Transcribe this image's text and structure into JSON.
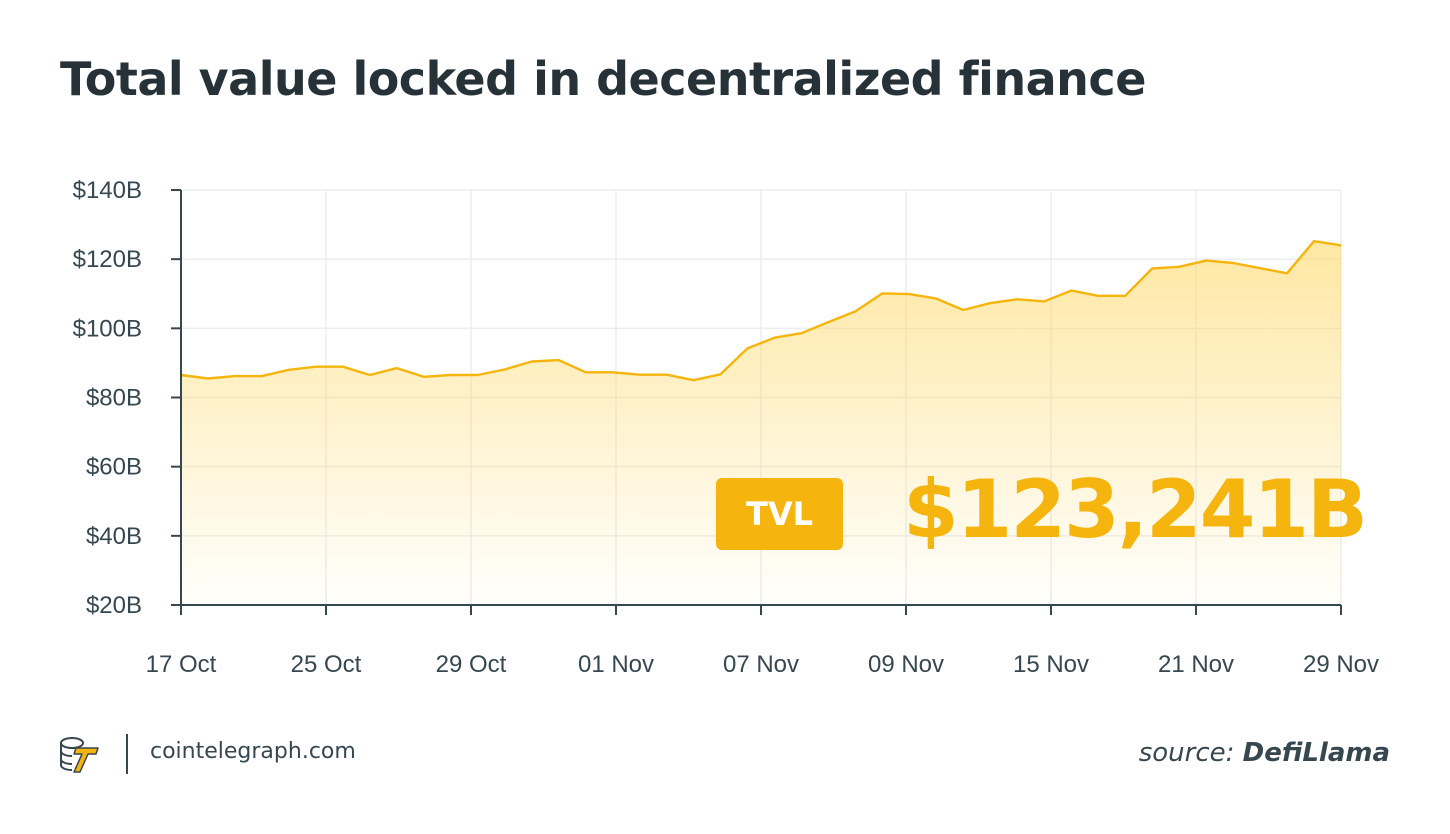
{
  "title": "Total value locked in decentralized finance",
  "chart_data": {
    "type": "area",
    "title": "Total value locked in decentralized finance",
    "xlabel": "",
    "ylabel": "",
    "ylim": [
      20,
      140
    ],
    "y_ticks": [
      "$20B",
      "$40B",
      "$60B",
      "$80B",
      "$100B",
      "$120B",
      "$140B"
    ],
    "y_tick_values": [
      20,
      40,
      60,
      80,
      100,
      120,
      140
    ],
    "x_tick_labels": [
      "17 Oct",
      "25 Oct",
      "29 Oct",
      "01 Nov",
      "07 Nov",
      "09 Nov",
      "15 Nov",
      "21 Nov",
      "29 Nov"
    ],
    "grid": true,
    "series": [
      {
        "values": [
          86.5,
          85.5,
          86.2,
          86.2,
          88,
          88.9,
          88.9,
          86.5,
          88.5,
          86,
          86.5,
          86.5,
          88.1,
          90.4,
          90.8,
          87.3,
          87.3,
          86.6,
          86.6,
          85,
          86.7,
          94.2,
          97.3,
          98.6,
          101.8,
          104.9,
          110.1,
          109.9,
          108.6,
          105.3,
          107.3,
          108.4,
          107.8,
          110.9,
          109.4,
          109.4,
          117.3,
          117.8,
          119.6,
          118.9,
          117.4,
          115.9,
          125.2,
          124
        ]
      }
    ],
    "colors": {
      "line": "#f5b50e",
      "fill": "#ffd866",
      "grid": "#ebedf0",
      "axis": "#37474f"
    }
  },
  "badge": {
    "label": "TVL",
    "value": "$123,241B"
  },
  "footer": {
    "site": "cointelegraph.com",
    "source_prefix": "source:",
    "source_name": "DefiLlama"
  }
}
